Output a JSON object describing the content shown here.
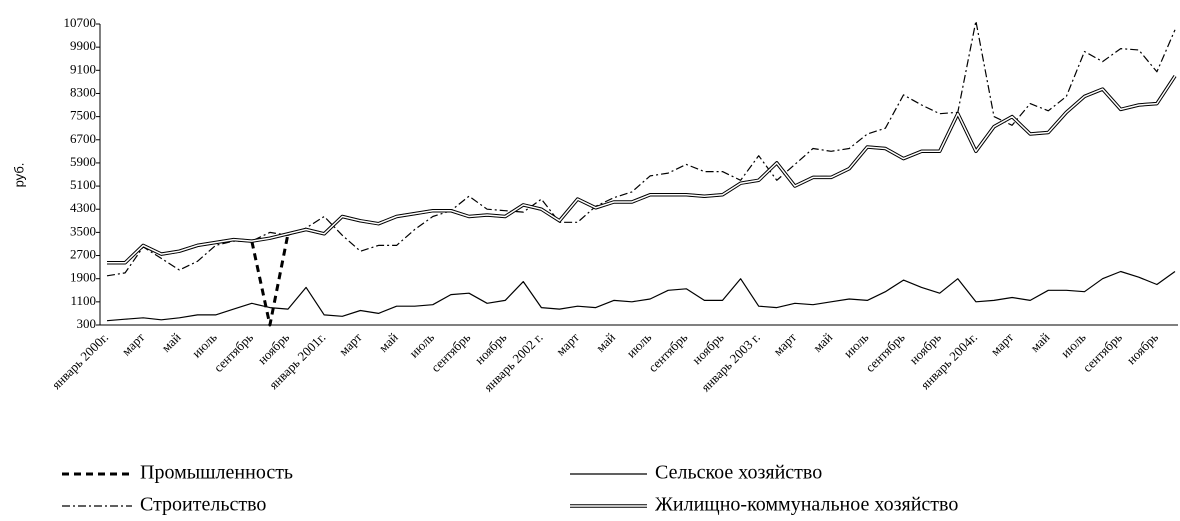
{
  "chart_data": {
    "type": "line",
    "y_label": "руб.",
    "categories": [
      "январь 2000г.",
      null,
      "март",
      null,
      "май",
      null,
      "июль",
      null,
      "сентябрь",
      null,
      "ноябрь",
      null,
      "январь 2001г.",
      null,
      "март",
      null,
      "май",
      null,
      "июль",
      null,
      "сентябрь",
      null,
      "ноябрь",
      null,
      "январь 2002 г.",
      null,
      "март",
      null,
      "май",
      null,
      "июль",
      null,
      "сентябрь",
      null,
      "ноябрь",
      null,
      "январь 2003 г.",
      null,
      "март",
      null,
      "май",
      null,
      "июль",
      null,
      "сентябрь",
      null,
      "ноябрь",
      null,
      "январь 2004г.",
      null,
      "март",
      null,
      "май",
      null,
      "июль",
      null,
      "сентябрь",
      null,
      "ноябрь",
      null
    ],
    "ylim": [
      300,
      10700
    ],
    "yticks": [
      300,
      1100,
      1900,
      2700,
      3500,
      4300,
      5100,
      5900,
      6700,
      7500,
      8300,
      9100,
      9900,
      10700
    ],
    "series": [
      {
        "name": "Промышленность",
        "color": "#000000",
        "style": "dashed",
        "values": [
          2450,
          2450,
          3050,
          2750,
          2850,
          3050,
          3150,
          3250,
          3200,
          300,
          3450,
          3600,
          3450,
          4050,
          3900,
          3800,
          4050,
          4150,
          4250,
          4250,
          4050,
          4100,
          4050,
          4450,
          4300,
          3900,
          4650,
          4350,
          4550,
          4550,
          4800,
          4800,
          4800,
          4750,
          4800,
          5200,
          5300,
          5900,
          5100,
          5400,
          5400,
          5700,
          6450,
          6400,
          6050,
          6300,
          6300,
          7600,
          6300,
          7150,
          7500,
          6900,
          6950,
          7650,
          8200,
          8450,
          7750,
          7900,
          7950,
          8900
        ]
      },
      {
        "name": "Сельское хозяйство",
        "color": "#000000",
        "style": "solid",
        "values": [
          450,
          500,
          550,
          480,
          550,
          650,
          650,
          850,
          1050,
          900,
          850,
          1600,
          650,
          600,
          800,
          700,
          950,
          950,
          1000,
          1350,
          1400,
          1050,
          1150,
          1800,
          900,
          850,
          950,
          900,
          1150,
          1100,
          1200,
          1500,
          1550,
          1150,
          1150,
          1900,
          950,
          900,
          1050,
          1000,
          1100,
          1200,
          1150,
          1450,
          1850,
          1600,
          1400,
          1900,
          1100,
          1150,
          1250,
          1150,
          1500,
          1500,
          1450,
          1900,
          2150,
          1950,
          1700,
          2150
        ]
      },
      {
        "name": "Строительство",
        "color": "#000000",
        "style": "dashdot",
        "values": [
          2000,
          2100,
          3000,
          2600,
          2200,
          2500,
          3050,
          3200,
          3200,
          3500,
          3400,
          3650,
          4050,
          3400,
          2850,
          3050,
          3050,
          3600,
          4050,
          4250,
          4750,
          4300,
          4250,
          4200,
          4650,
          3850,
          3850,
          4400,
          4700,
          4900,
          5450,
          5550,
          5850,
          5600,
          5600,
          5300,
          6150,
          5300,
          5850,
          6400,
          6300,
          6400,
          6900,
          7100,
          8250,
          7900,
          7600,
          7650,
          10800,
          7500,
          7200,
          7950,
          7700,
          8200,
          9750,
          9400,
          9850,
          9800,
          9050,
          10500
        ]
      },
      {
        "name": "Жилищно-коммунальное хозяйство",
        "color": "#000000",
        "style": "double",
        "values": [
          2450,
          2450,
          3050,
          2750,
          2850,
          3050,
          3150,
          3250,
          3200,
          3300,
          3450,
          3600,
          3450,
          4050,
          3900,
          3800,
          4050,
          4150,
          4250,
          4250,
          4050,
          4100,
          4050,
          4450,
          4300,
          3900,
          4650,
          4350,
          4550,
          4550,
          4800,
          4800,
          4800,
          4750,
          4800,
          5200,
          5300,
          5900,
          5100,
          5400,
          5400,
          5700,
          6450,
          6400,
          6050,
          6300,
          6300,
          7600,
          6300,
          7150,
          7500,
          6900,
          6950,
          7650,
          8200,
          8450,
          7750,
          7900,
          7950,
          8900
        ]
      }
    ]
  }
}
